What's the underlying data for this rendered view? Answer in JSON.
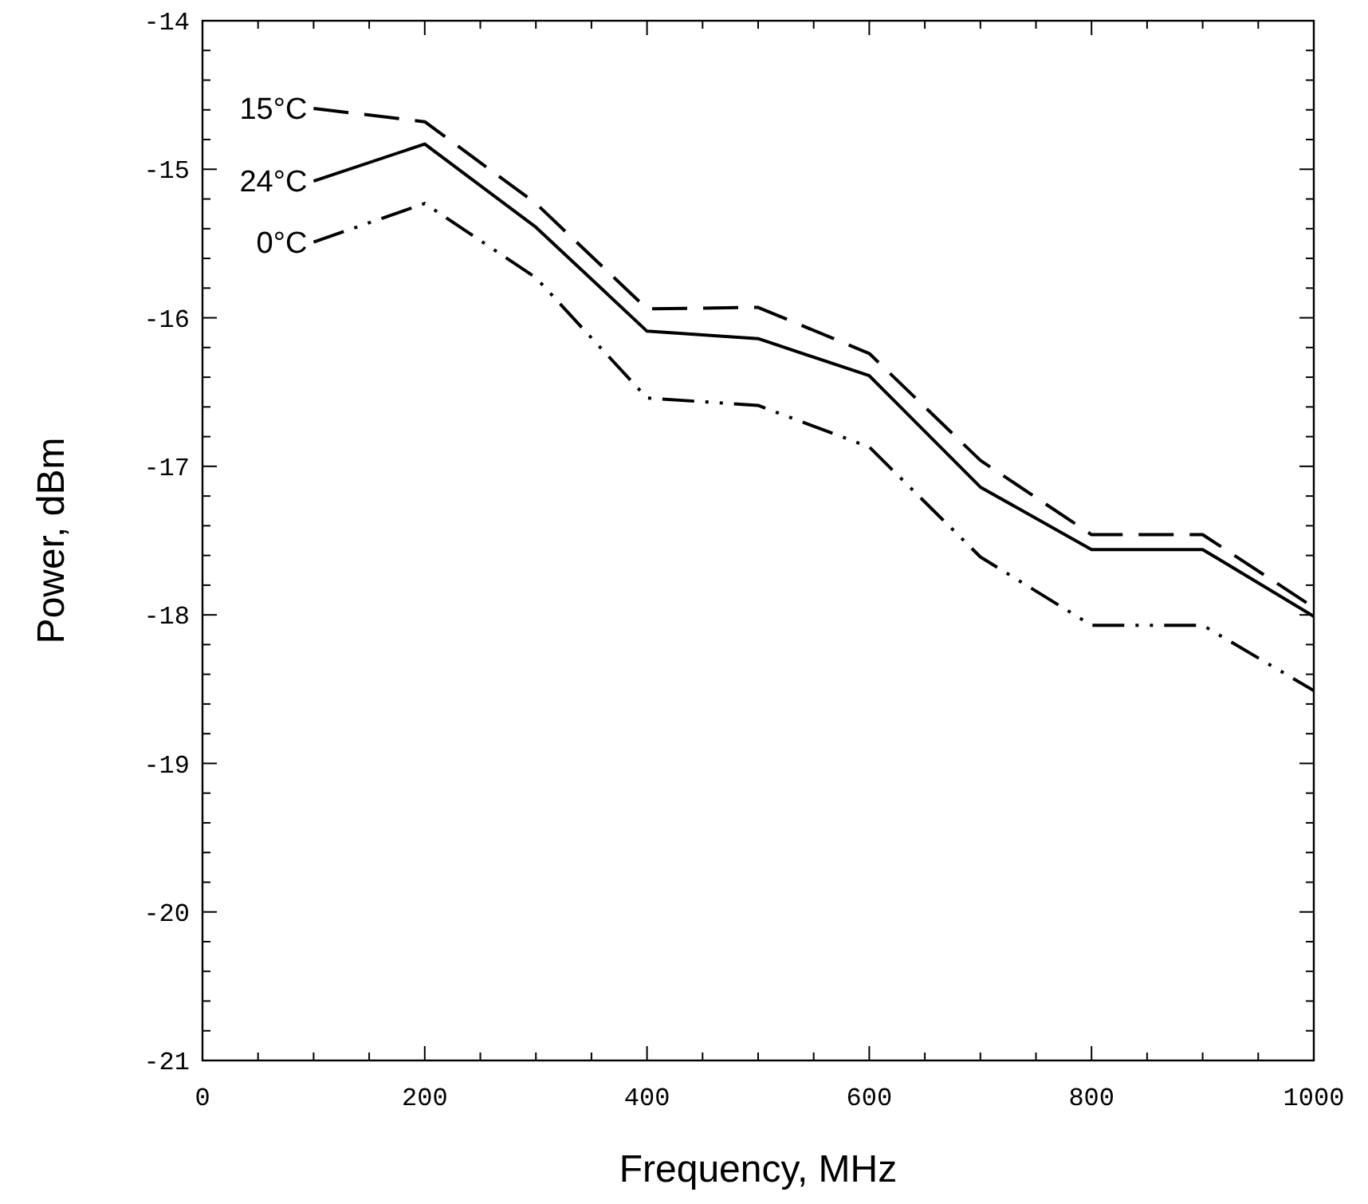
{
  "chart_data": {
    "type": "line",
    "xlabel": "Frequency, MHz",
    "ylabel": "Power, dBm",
    "x": [
      100,
      200,
      300,
      400,
      500,
      600,
      700,
      800,
      900,
      1000
    ],
    "xlim": [
      0,
      1000
    ],
    "xticks": [
      0,
      200,
      400,
      600,
      800,
      1000
    ],
    "ylim": [
      -21,
      -14
    ],
    "yticks": [
      -21,
      -20,
      -19,
      -18,
      -17,
      -16,
      -15,
      -14
    ],
    "grid": false,
    "marker": "none",
    "series": [
      {
        "name": "15°C",
        "color": "#000000",
        "line_style": "dashed",
        "values": [
          -14.59,
          -14.68,
          -15.23,
          -15.94,
          -15.93,
          -16.24,
          -16.96,
          -17.46,
          -17.46,
          -17.95
        ]
      },
      {
        "name": "24°C",
        "color": "#000000",
        "line_style": "solid",
        "values": [
          -15.08,
          -14.83,
          -15.39,
          -16.09,
          -16.14,
          -16.39,
          -17.14,
          -17.56,
          -17.56,
          -18.01
        ]
      },
      {
        "name": "0°C",
        "color": "#000000",
        "line_style": "dotted",
        "values": [
          -15.49,
          -15.23,
          -15.73,
          -16.54,
          -16.59,
          -16.87,
          -17.61,
          -18.07,
          -18.07,
          -18.51
        ]
      }
    ]
  }
}
